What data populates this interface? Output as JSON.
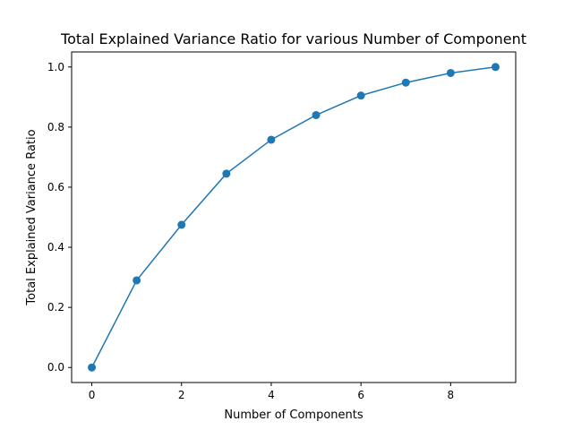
{
  "chart_data": {
    "type": "line",
    "title": "Total Explained Variance Ratio for various Number of Component",
    "xlabel": "Number of Components",
    "ylabel": "Total Explained Variance Ratio",
    "x": [
      0,
      1,
      2,
      3,
      4,
      5,
      6,
      7,
      8,
      9
    ],
    "series": [
      {
        "values": [
          0.0,
          0.29,
          0.475,
          0.645,
          0.758,
          0.84,
          0.905,
          0.948,
          0.98,
          1.0
        ],
        "color": "#1f77b4",
        "marker": "circle"
      }
    ],
    "xlim": [
      -0.45,
      9.45
    ],
    "ylim": [
      -0.05,
      1.05
    ],
    "xticks": [
      0,
      2,
      4,
      6,
      8
    ],
    "xtick_labels": [
      "0",
      "2",
      "4",
      "6",
      "8"
    ],
    "yticks": [
      0.0,
      0.2,
      0.4,
      0.6,
      0.8,
      1.0
    ],
    "ytick_labels": [
      "0.0",
      "0.2",
      "0.4",
      "0.6",
      "0.8",
      "1.0"
    ],
    "grid": false,
    "legend": "none"
  }
}
